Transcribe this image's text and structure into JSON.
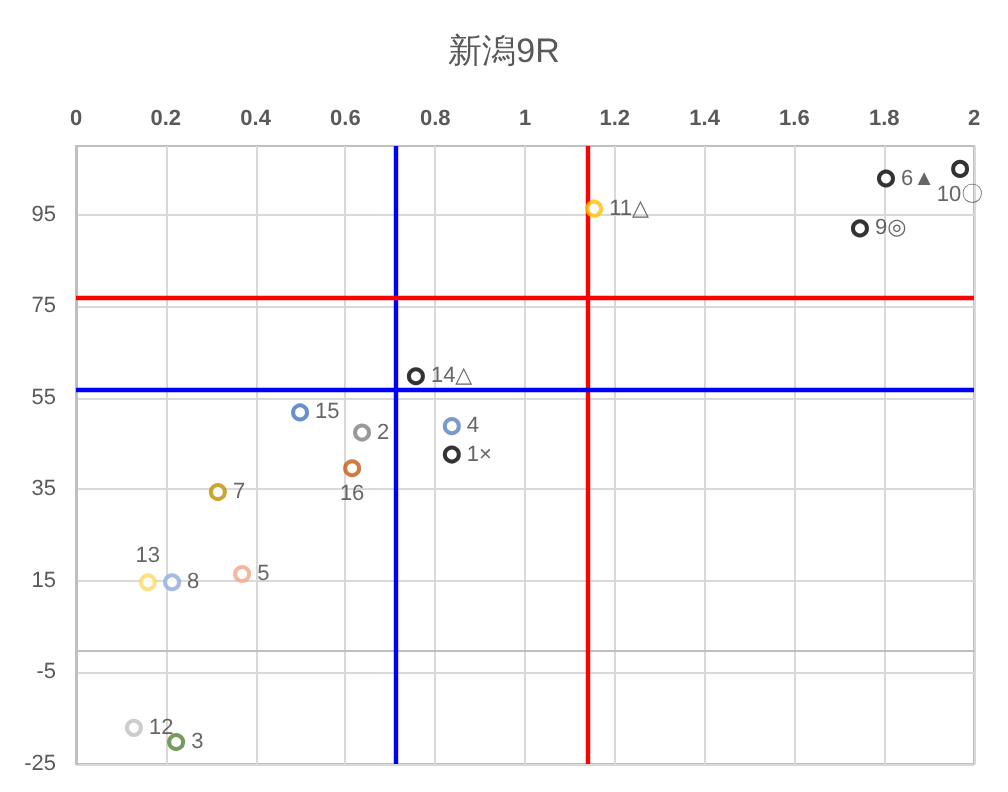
{
  "chart_data": {
    "type": "scatter",
    "title": "新潟9R",
    "x": [
      0.837,
      0.637,
      0.223,
      0.837,
      0.37,
      1.804,
      0.316,
      0.214,
      1.746,
      1.969,
      1.154,
      0.129,
      0.16,
      0.757,
      0.499,
      0.615
    ],
    "values": [
      42.6,
      47.4,
      -20.2,
      48.8,
      16.5,
      102.9,
      34.4,
      14.7,
      92,
      105,
      96.3,
      -17.1,
      14.7,
      59.7,
      51.8,
      39.6
    ],
    "colors": [
      "#000000",
      "#7f7f7f",
      "#548235",
      "#5b7fbf",
      "#f4a582",
      "#000000",
      "#bf9000",
      "#8faadc",
      "#000000",
      "#000000",
      "#ffc000",
      "#bfbfbf",
      "#ffd966",
      "#000000",
      "#4472c4",
      "#c55a11"
    ],
    "annotations": [
      {
        "text": "1×",
        "x": 0.837,
        "y": 42.6
      },
      {
        "text": "2",
        "x": 0.637,
        "y": 47.4
      },
      {
        "text": "3",
        "x": 0.223,
        "y": -20.2
      },
      {
        "text": "4",
        "x": 0.837,
        "y": 48.8
      },
      {
        "text": "5",
        "x": 0.37,
        "y": 16.5
      },
      {
        "text": "6▲",
        "x": 1.804,
        "y": 102.9
      },
      {
        "text": "7",
        "x": 0.316,
        "y": 34.4
      },
      {
        "text": "8",
        "x": 0.214,
        "y": 14.7
      },
      {
        "text": "9◎",
        "x": 1.746,
        "y": 92
      },
      {
        "text": "10〇",
        "x": 1.969,
        "y": 105
      },
      {
        "text": "11△",
        "x": 1.154,
        "y": 96.3
      },
      {
        "text": "12",
        "x": 0.129,
        "y": -17.1
      },
      {
        "text": "13",
        "x": 0.16,
        "y": 14.7
      },
      {
        "text": "14△",
        "x": 0.757,
        "y": 59.7
      },
      {
        "text": "15",
        "x": 0.499,
        "y": 51.8
      },
      {
        "text": "16",
        "x": 0.615,
        "y": 39.6
      }
    ],
    "marker": "circle",
    "xlim": [
      0,
      2
    ],
    "xticks": [
      0,
      0.2,
      0.4,
      0.6,
      0.8,
      1,
      1.2,
      1.4,
      1.6,
      1.8,
      2
    ],
    "ylim": [
      -25,
      110
    ],
    "yticks": [
      -25,
      -5,
      15,
      35,
      55,
      75,
      95
    ],
    "grid": true,
    "ref_lines": [
      {
        "axis": "x",
        "value": 0.713,
        "color": "#0000ff"
      },
      {
        "axis": "x",
        "value": 1.136,
        "color": "#ff0000"
      },
      {
        "axis": "y",
        "value": 77.1,
        "color": "#ff0000"
      },
      {
        "axis": "y",
        "value": 57,
        "color": "#0000ff"
      }
    ]
  }
}
